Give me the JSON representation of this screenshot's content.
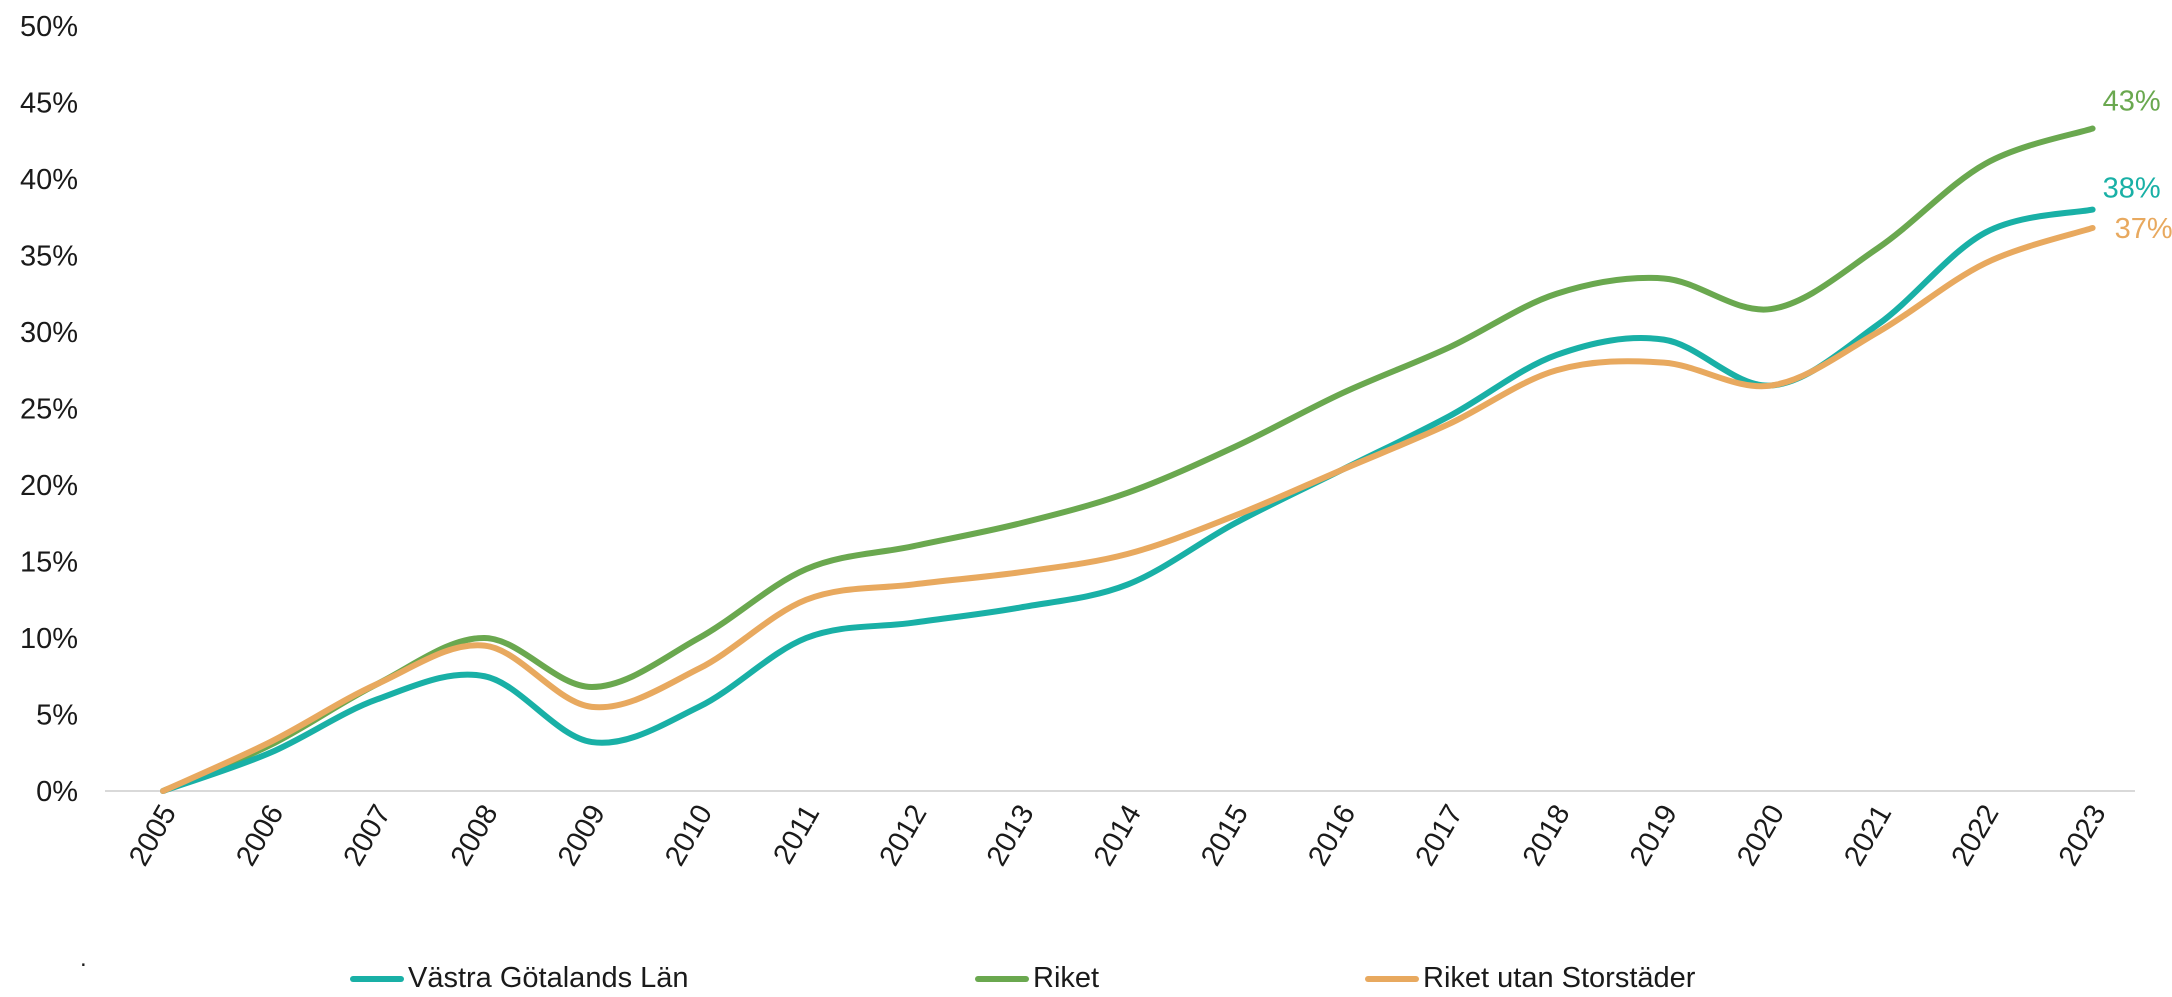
{
  "chart_data": {
    "type": "line",
    "x": [
      "2005",
      "2006",
      "2007",
      "2008",
      "2009",
      "2010",
      "2011",
      "2012",
      "2013",
      "2014",
      "2015",
      "2016",
      "2017",
      "2018",
      "2019",
      "2020",
      "2021",
      "2022",
      "2023"
    ],
    "ylim": [
      0,
      50
    ],
    "yticks": [
      "0%",
      "5%",
      "10%",
      "15%",
      "20%",
      "25%",
      "30%",
      "35%",
      "40%",
      "45%",
      "50%"
    ],
    "grid": false,
    "legend_position": "bottom",
    "series": [
      {
        "name": "Västra Götalands Län",
        "color": "#19b0a6",
        "values": [
          0,
          2.5,
          6,
          7.5,
          3.2,
          5.5,
          10,
          11,
          12,
          13.5,
          17.5,
          21,
          24.5,
          28.5,
          29.5,
          26.5,
          30.5,
          36.5,
          38
        ],
        "end_label": "38%"
      },
      {
        "name": "Riket",
        "color": "#6aa84f",
        "values": [
          0,
          3,
          7,
          10,
          6.8,
          10,
          14.5,
          16,
          17.5,
          19.5,
          22.5,
          26,
          29,
          32.5,
          33.5,
          31.5,
          35.5,
          41,
          43.3
        ],
        "end_label": "43%"
      },
      {
        "name": "Riket utan Storstäder",
        "color": "#e8a95f",
        "values": [
          0,
          3.2,
          7,
          9.5,
          5.5,
          8,
          12.5,
          13.5,
          14.3,
          15.5,
          18,
          21,
          24,
          27.5,
          28,
          26.5,
          30,
          34.5,
          36.8
        ],
        "end_label": "37%"
      }
    ]
  },
  "footnote": "."
}
